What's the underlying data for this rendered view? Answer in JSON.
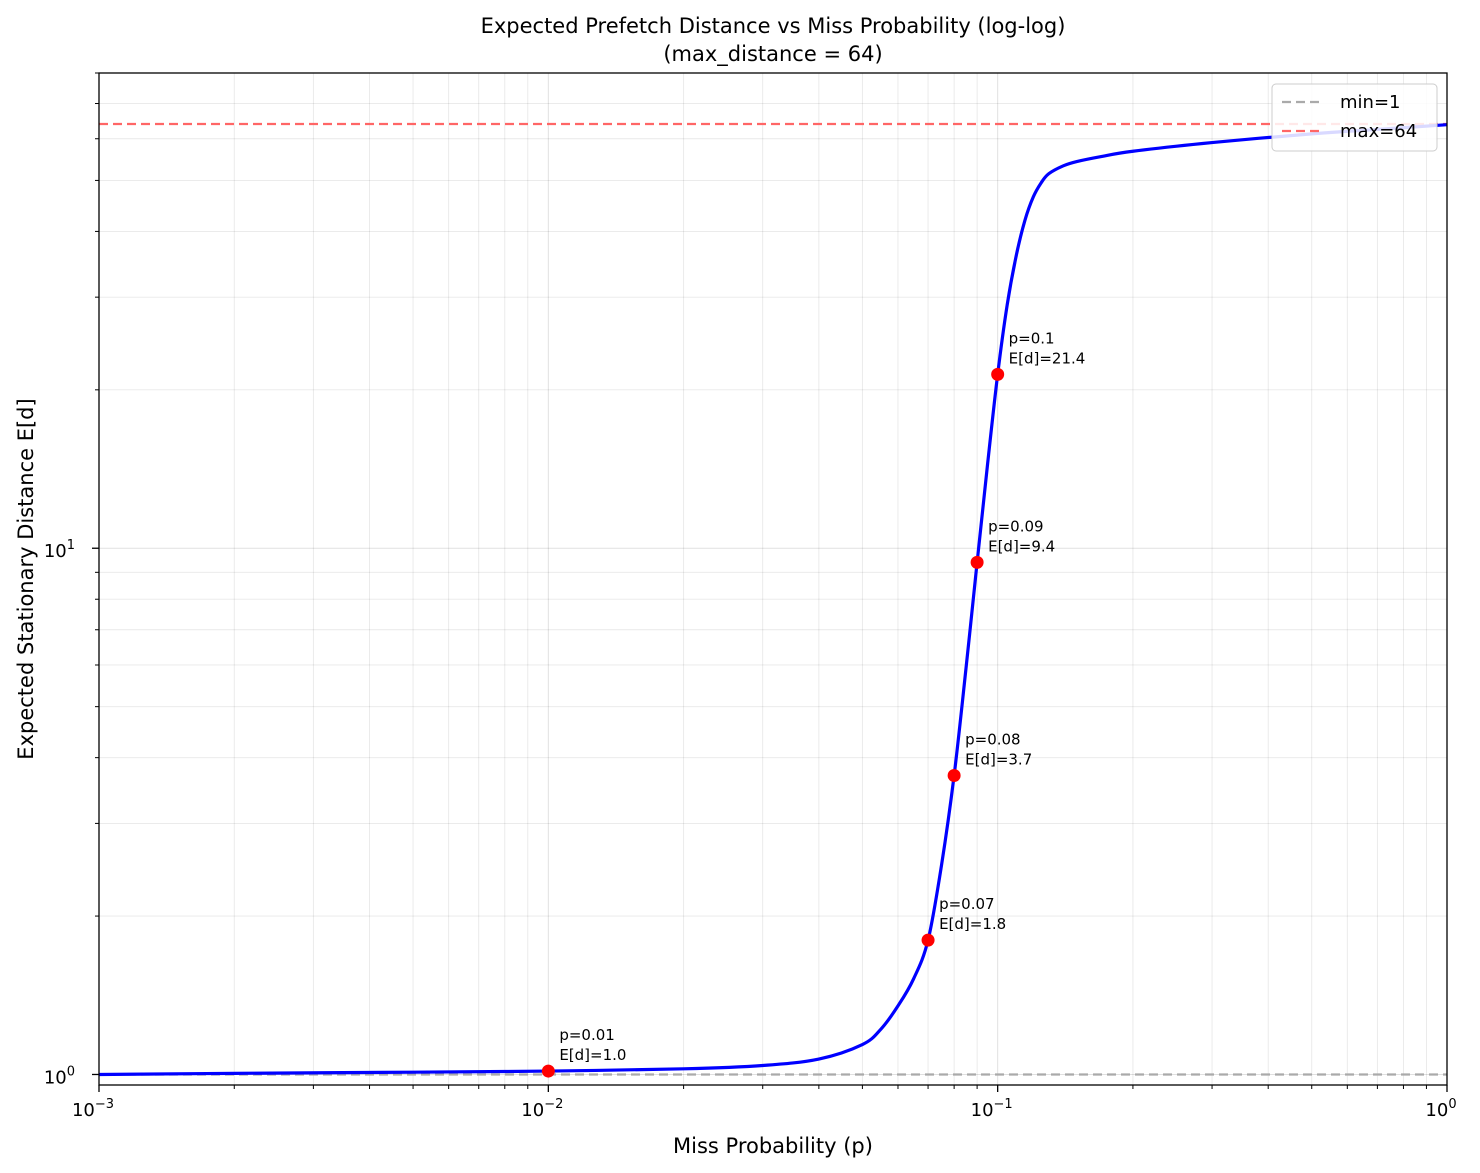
{
  "chart_data": {
    "type": "line",
    "title": "Expected Prefetch Distance vs Miss Probability (log-log)",
    "subtitle": "(max_distance = 64)",
    "xlabel": "Miss Probability (p)",
    "ylabel": "Expected Stationary Distance E[d]",
    "xscale": "log",
    "yscale": "log",
    "xlim": [
      0.001,
      1
    ],
    "ylim": [
      0.955,
      80
    ],
    "grid": true,
    "legend_position": "top-right",
    "x_ticks": [
      {
        "base": "10",
        "exp": "−3",
        "value": 0.001
      },
      {
        "base": "10",
        "exp": "−2",
        "value": 0.01
      },
      {
        "base": "10",
        "exp": "−1",
        "value": 0.1
      },
      {
        "base": "10",
        "exp": "0",
        "value": 1
      }
    ],
    "y_ticks": [
      {
        "base": "10",
        "exp": "0",
        "value": 1
      },
      {
        "base": "10",
        "exp": "1",
        "value": 10
      }
    ],
    "series": [
      {
        "color": "#0000ff",
        "x": [
          0.001,
          0.002,
          0.005,
          0.01,
          0.02,
          0.03,
          0.04,
          0.05,
          0.055,
          0.06,
          0.065,
          0.07,
          0.075,
          0.08,
          0.085,
          0.09,
          0.095,
          0.1,
          0.105,
          0.11,
          0.115,
          0.12,
          0.125,
          0.13,
          0.14,
          0.15,
          0.17,
          0.2,
          0.3,
          0.5,
          0.7,
          1.0
        ],
        "y": [
          1.0,
          1.005,
          1.01,
          1.015,
          1.025,
          1.04,
          1.07,
          1.14,
          1.22,
          1.35,
          1.52,
          1.8,
          2.5,
          3.7,
          5.9,
          9.4,
          14.5,
          21.4,
          29.0,
          36.0,
          42.0,
          46.5,
          49.5,
          51.5,
          53.3,
          54.3,
          55.5,
          56.8,
          59.0,
          61.3,
          62.5,
          63.8
        ]
      }
    ],
    "markers": {
      "color": "#ff0000",
      "points": [
        {
          "x": 0.01,
          "y": 1.015,
          "label_p": "p=0.01",
          "label_e": "E[d]=1.0"
        },
        {
          "x": 0.07,
          "y": 1.8,
          "label_p": "p=0.07",
          "label_e": "E[d]=1.8"
        },
        {
          "x": 0.08,
          "y": 3.7,
          "label_p": "p=0.08",
          "label_e": "E[d]=3.7"
        },
        {
          "x": 0.09,
          "y": 9.4,
          "label_p": "p=0.09",
          "label_e": "E[d]=9.4"
        },
        {
          "x": 0.1,
          "y": 21.4,
          "label_p": "p=0.1",
          "label_e": "E[d]=21.4"
        }
      ]
    },
    "reference_lines": [
      {
        "name": "min=1",
        "y": 1,
        "color": "#aaaaaa",
        "style": "dashed"
      },
      {
        "name": "max=64",
        "y": 64,
        "color": "#ff6666",
        "style": "dashed"
      }
    ]
  }
}
